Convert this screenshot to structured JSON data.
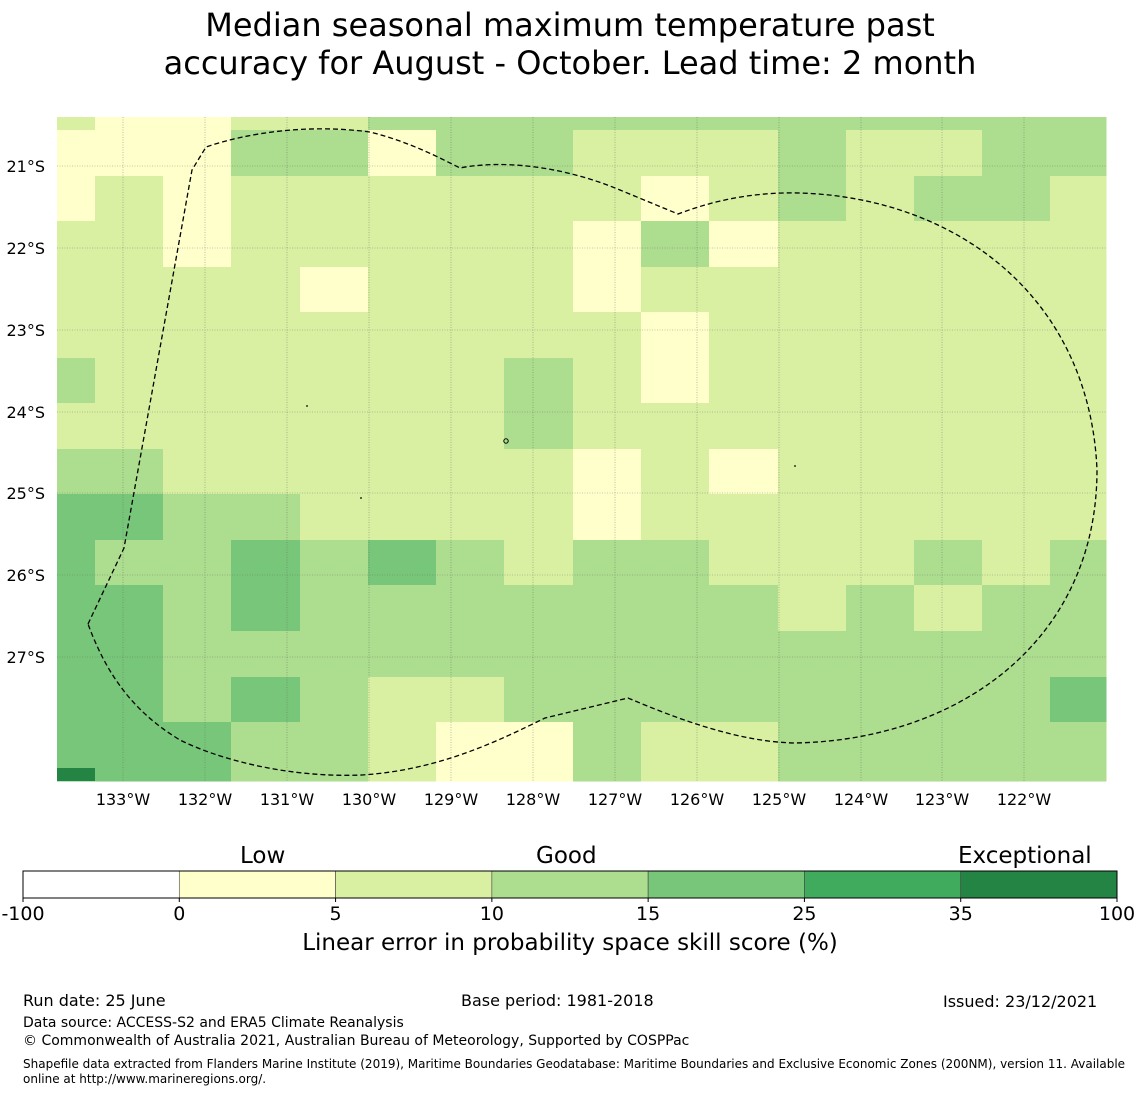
{
  "title": {
    "line1": "Median seasonal maximum temperature past",
    "line2": "accuracy for August - October. Lead time: 2 month"
  },
  "map": {
    "lat_labels": [
      "21°S",
      "22°S",
      "23°S",
      "24°S",
      "25°S",
      "26°S",
      "27°S"
    ],
    "lon_labels": [
      "133°W",
      "132°W",
      "131°W",
      "130°W",
      "129°W",
      "128°W",
      "127°W",
      "126°W",
      "125°W",
      "124°W",
      "123°W",
      "122°W"
    ],
    "cell_classes": [
      [
        2,
        1,
        1,
        2,
        2,
        3,
        3,
        3,
        3,
        3,
        3,
        3,
        3,
        3,
        3,
        3
      ],
      [
        1,
        1,
        1,
        3,
        3,
        1,
        3,
        3,
        2,
        2,
        2,
        3,
        2,
        2,
        3,
        3
      ],
      [
        1,
        2,
        1,
        2,
        2,
        2,
        2,
        2,
        2,
        1,
        2,
        3,
        2,
        3,
        3,
        2
      ],
      [
        2,
        2,
        1,
        2,
        2,
        2,
        2,
        2,
        1,
        3,
        1,
        2,
        2,
        2,
        2,
        2
      ],
      [
        2,
        2,
        2,
        2,
        1,
        2,
        2,
        2,
        1,
        2,
        2,
        2,
        2,
        2,
        2,
        2
      ],
      [
        2,
        2,
        2,
        2,
        2,
        2,
        2,
        2,
        2,
        1,
        2,
        2,
        2,
        2,
        2,
        2
      ],
      [
        3,
        2,
        2,
        2,
        2,
        2,
        2,
        3,
        2,
        1,
        2,
        2,
        2,
        2,
        2,
        2
      ],
      [
        2,
        2,
        2,
        2,
        2,
        2,
        2,
        3,
        2,
        2,
        2,
        2,
        2,
        2,
        2,
        2
      ],
      [
        3,
        3,
        2,
        2,
        2,
        2,
        2,
        2,
        1,
        2,
        1,
        2,
        2,
        2,
        2,
        2
      ],
      [
        4,
        4,
        3,
        3,
        2,
        2,
        2,
        2,
        1,
        2,
        2,
        2,
        2,
        2,
        2,
        2
      ],
      [
        4,
        3,
        3,
        4,
        3,
        4,
        3,
        2,
        3,
        3,
        2,
        2,
        2,
        3,
        2,
        3
      ],
      [
        4,
        4,
        3,
        4,
        3,
        3,
        3,
        3,
        3,
        3,
        3,
        2,
        3,
        2,
        3,
        3
      ],
      [
        4,
        4,
        3,
        3,
        3,
        3,
        3,
        3,
        3,
        3,
        3,
        3,
        3,
        3,
        3,
        3
      ],
      [
        4,
        4,
        3,
        4,
        3,
        2,
        2,
        3,
        3,
        3,
        3,
        3,
        3,
        3,
        3,
        4
      ],
      [
        4,
        4,
        4,
        3,
        3,
        2,
        1,
        1,
        3,
        2,
        2,
        3,
        3,
        3,
        3,
        3
      ]
    ]
  },
  "colorbar": {
    "words": [
      "Low",
      "Good",
      "Exceptional"
    ],
    "ticks": [
      "-100",
      "0",
      "5",
      "10",
      "15",
      "25",
      "35",
      "100"
    ],
    "colors": [
      "#ffffff",
      "#ffffcc",
      "#d9f0a3",
      "#addd8e",
      "#78c679",
      "#41ab5d",
      "#238443"
    ],
    "label": "Linear error in probability space skill score (%)"
  },
  "footer": {
    "run_date": "Run date: 25 June",
    "base_period": "Base period: 1981-2018",
    "issued": "Issued: 23/12/2021",
    "data_source": "Data source: ACCESS-S2 and ERA5 Climate Reanalysis",
    "copyright": "© Commonwealth of Australia 2021, Australian Bureau of Meteorology, Supported by COSPPac",
    "shapefile": "Shapefile data extracted from Flanders Marine Institute (2019), Maritime Boundaries Geodatabase: Maritime Boundaries and Exclusive Economic Zones (200NM), version 11. Available online at http://www.marineregions.org/."
  }
}
